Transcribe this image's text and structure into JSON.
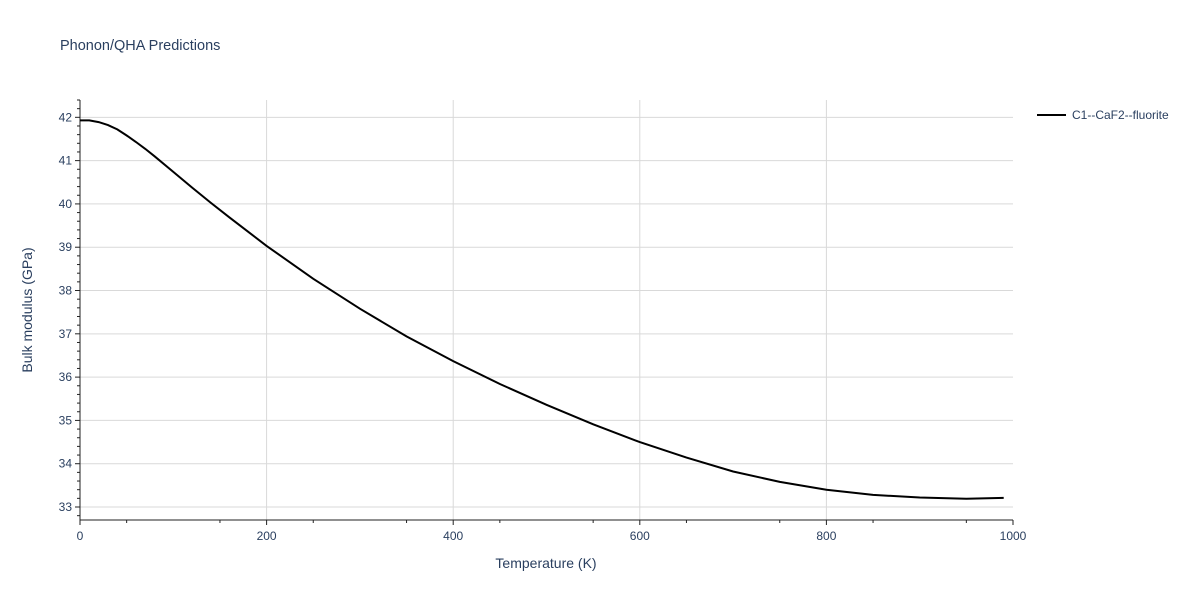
{
  "chart_data": {
    "type": "line",
    "title": "Phonon/QHA Predictions",
    "xlabel": "Temperature (K)",
    "ylabel": "Bulk modulus (GPa)",
    "xlim": [
      0,
      1000
    ],
    "ylim": [
      32.7,
      42.4
    ],
    "x_ticks": [
      0,
      200,
      400,
      600,
      800,
      1000
    ],
    "y_ticks": [
      33,
      34,
      35,
      36,
      37,
      38,
      39,
      40,
      41,
      42
    ],
    "grid": true,
    "legend_position": "top-right",
    "series": [
      {
        "name": "C1--CaF2--fluorite",
        "color": "#000000",
        "x": [
          0,
          10,
          20,
          30,
          40,
          50,
          60,
          70,
          80,
          100,
          120,
          140,
          160,
          180,
          200,
          250,
          300,
          350,
          400,
          450,
          500,
          550,
          600,
          650,
          700,
          750,
          800,
          850,
          900,
          950,
          990
        ],
        "y": [
          41.93,
          41.93,
          41.89,
          41.82,
          41.72,
          41.58,
          41.43,
          41.27,
          41.1,
          40.74,
          40.38,
          40.03,
          39.69,
          39.36,
          39.03,
          38.27,
          37.58,
          36.94,
          36.37,
          35.84,
          35.36,
          34.91,
          34.5,
          34.14,
          33.82,
          33.58,
          33.4,
          33.28,
          33.22,
          33.19,
          33.21
        ]
      }
    ]
  }
}
